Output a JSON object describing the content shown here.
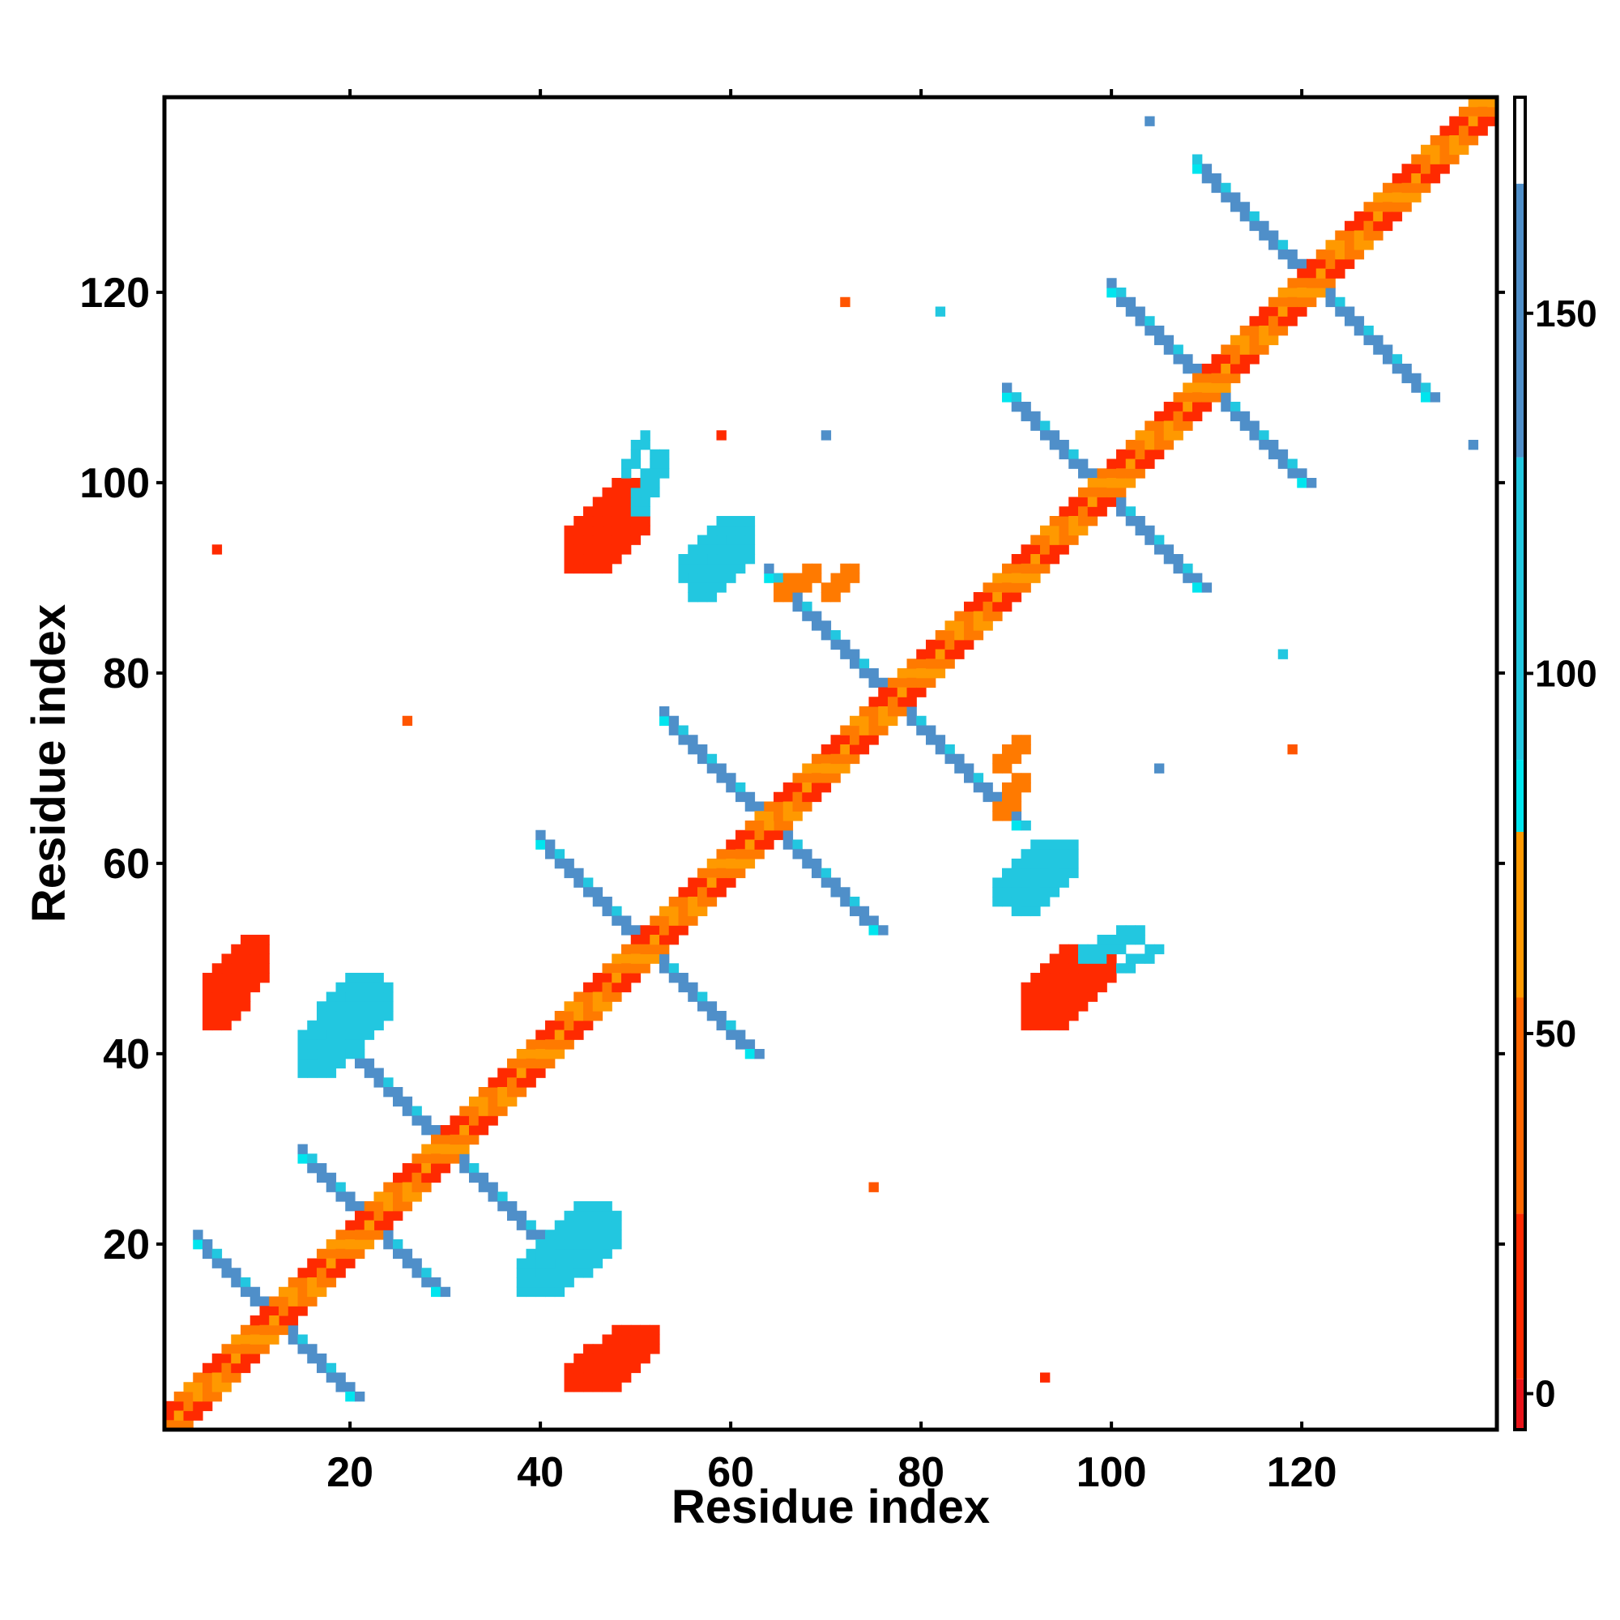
{
  "chart_data": {
    "type": "heatmap",
    "title": "",
    "xlabel": "Residue index",
    "ylabel": "Residue index",
    "xlim": [
      1,
      140
    ],
    "ylim": [
      1,
      140
    ],
    "x_ticks": [
      20,
      40,
      60,
      80,
      100,
      120
    ],
    "y_ticks": [
      20,
      40,
      60,
      80,
      100,
      120
    ],
    "colorbar": {
      "range": [
        -5,
        180
      ],
      "ticks": [
        0,
        50,
        100,
        150
      ],
      "bands": [
        {
          "from": -5,
          "to": 2,
          "color": "#e8141a"
        },
        {
          "from": 2,
          "to": 25,
          "color": "#ff2a00"
        },
        {
          "from": 25,
          "to": 55,
          "color": "#ff6600"
        },
        {
          "from": 55,
          "to": 78,
          "color": "#ff9900"
        },
        {
          "from": 78,
          "to": 88,
          "color": "#00e5ee"
        },
        {
          "from": 88,
          "to": 130,
          "color": "#22c7e0"
        },
        {
          "from": 130,
          "to": 168,
          "color": "#4f8fc9"
        },
        {
          "from": 168,
          "to": 180,
          "color": "#ffffff"
        }
      ]
    },
    "cell_colors": {
      "red": "#ff2a00",
      "red_orange": "#ff5500",
      "orange": "#ff7a00",
      "light_orange": "#ff9900",
      "cyan": "#00e5ee",
      "light_blue": "#22c7e0",
      "blue": "#4f8fc9",
      "steel_blue": "#5b8dc8"
    },
    "diagonal_band": {
      "from": 1,
      "to": 140,
      "pattern": [
        "red",
        "orange",
        "light_orange",
        "orange",
        "red"
      ]
    },
    "crosses": [
      {
        "center": 12,
        "arm": 8,
        "color": "blue"
      },
      {
        "center": 22,
        "arm": 7,
        "color": "blue"
      },
      {
        "center": 30,
        "arm": 13,
        "color": "blue"
      },
      {
        "center": 51,
        "arm": 11,
        "color": "blue"
      },
      {
        "center": 64,
        "arm": 11,
        "color": "blue"
      },
      {
        "center": 77,
        "arm": 13,
        "color": "blue"
      },
      {
        "center": 99,
        "arm": 10,
        "color": "blue"
      },
      {
        "center": 110,
        "arm": 10,
        "color": "blue"
      },
      {
        "center": 121,
        "arm": 12,
        "color": "blue"
      }
    ],
    "blobs": [
      {
        "x": [
          45,
          52
        ],
        "y": [
          5,
          11
        ],
        "color": "red"
      },
      {
        "x": [
          5,
          11
        ],
        "y": [
          43,
          52
        ],
        "color": "red"
      },
      {
        "x": [
          45,
          51
        ],
        "y": [
          91,
          98
        ],
        "color": "red"
      },
      {
        "x": [
          91,
          100
        ],
        "y": [
          43,
          51
        ],
        "color": "red"
      },
      {
        "x": [
          101,
          105
        ],
        "y": [
          49,
          51
        ],
        "color": "light_blue"
      },
      {
        "x": [
          17,
          24
        ],
        "y": [
          40,
          47
        ],
        "color": "light_blue"
      },
      {
        "x": [
          50,
          53
        ],
        "y": [
          97,
          103
        ],
        "color": "light_blue"
      },
      {
        "x": [
          38,
          48
        ],
        "y": [
          15,
          23
        ],
        "color": "light_blue"
      },
      {
        "x": [
          56,
          62
        ],
        "y": [
          88,
          94
        ],
        "color": "light_blue"
      },
      {
        "x": [
          90,
          96
        ],
        "y": [
          55,
          62
        ],
        "color": "light_blue"
      },
      {
        "x": [
          70,
          73
        ],
        "y": [
          88,
          91
        ],
        "color": "orange"
      },
      {
        "x": [
          88,
          91
        ],
        "y": [
          65,
          69
        ],
        "color": "orange"
      }
    ],
    "points": [
      {
        "x": 6,
        "y": 93,
        "color": "red"
      },
      {
        "x": 93,
        "y": 6,
        "color": "red"
      },
      {
        "x": 26,
        "y": 75,
        "color": "red_orange"
      },
      {
        "x": 75,
        "y": 26,
        "color": "red_orange"
      },
      {
        "x": 72,
        "y": 119,
        "color": "red_orange"
      },
      {
        "x": 119,
        "y": 72,
        "color": "red_orange"
      },
      {
        "x": 70,
        "y": 105,
        "color": "blue"
      },
      {
        "x": 105,
        "y": 70,
        "color": "blue"
      },
      {
        "x": 59,
        "y": 105,
        "color": "red"
      },
      {
        "x": 104,
        "y": 138,
        "color": "blue"
      },
      {
        "x": 138,
        "y": 104,
        "color": "blue"
      },
      {
        "x": 28,
        "y": 29,
        "color": "light_blue"
      },
      {
        "x": 118,
        "y": 82,
        "color": "light_blue"
      },
      {
        "x": 82,
        "y": 118,
        "color": "light_blue"
      }
    ]
  }
}
